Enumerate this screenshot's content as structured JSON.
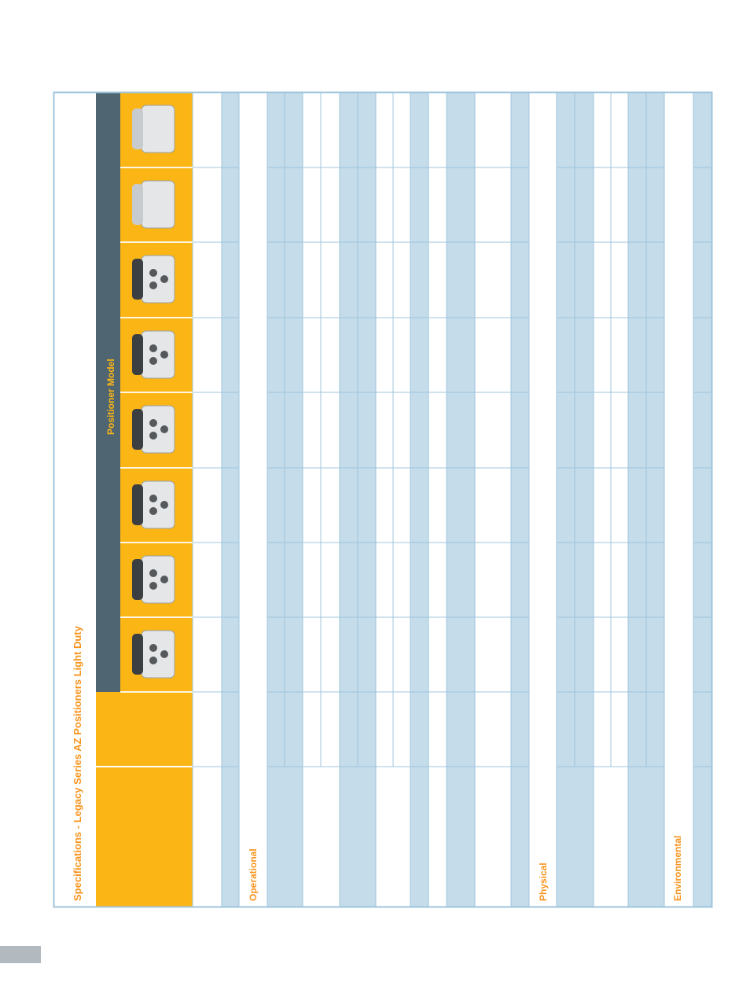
{
  "title": "Specifications - Legacy Series AZ Positioners Light Duty",
  "header": {
    "group_label": "Positioner Model"
  },
  "sections": [
    "Operational",
    "Physical",
    "Environmental"
  ]
}
